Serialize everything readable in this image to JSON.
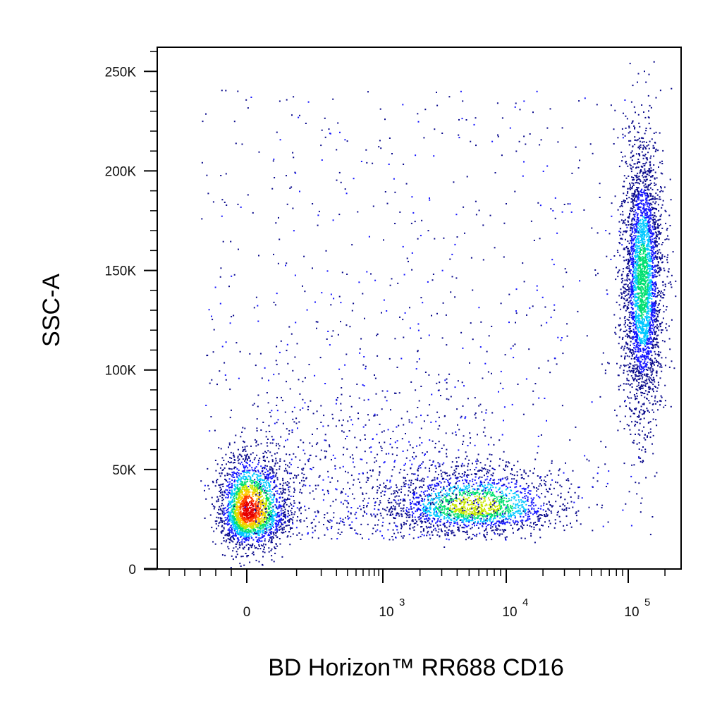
{
  "chart_data": {
    "type": "scatter",
    "title": "",
    "xlabel": "BD Horizon™ RR688 CD16",
    "ylabel": "SSC-A",
    "x_scale": "biexponential",
    "xlim": [
      -200,
      250000
    ],
    "ylim": [
      0,
      262144
    ],
    "x_ticks": [
      {
        "value": 0,
        "label": "0"
      },
      {
        "value": 1000,
        "label": "10",
        "exponent": "3"
      },
      {
        "value": 10000,
        "label": "10",
        "exponent": "4"
      },
      {
        "value": 100000,
        "label": "10",
        "exponent": "5"
      }
    ],
    "y_ticks": [
      {
        "value": 0,
        "label": "0"
      },
      {
        "value": 50000,
        "label": "50K"
      },
      {
        "value": 100000,
        "label": "100K"
      },
      {
        "value": 150000,
        "label": "150K"
      },
      {
        "value": 200000,
        "label": "200K"
      },
      {
        "value": 250000,
        "label": "250K"
      }
    ],
    "grid": false,
    "legend": "none",
    "color_scale": [
      "#0a0a8c",
      "#1414ff",
      "#00c8ff",
      "#00e070",
      "#c8e600",
      "#ffc800",
      "#ff3c00",
      "#e60000"
    ],
    "populations": [
      {
        "x_center": 0,
        "y_center": 29000,
        "x_spread": 35,
        "y_spread": 9000,
        "density": "highest"
      },
      {
        "x_center": 5500,
        "y_center": 31000,
        "x_spread": 0.35,
        "y_spread": 6000,
        "density": "high"
      },
      {
        "x_center": 130000,
        "y_center": 145000,
        "x_spread": 0.08,
        "y_spread": 30000,
        "density": "high"
      }
    ]
  }
}
